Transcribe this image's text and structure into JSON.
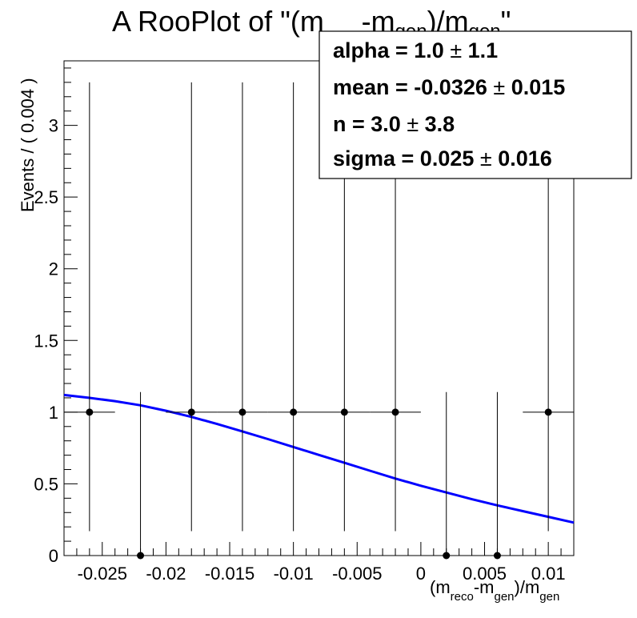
{
  "chart_data": {
    "type": "scatter",
    "title": "A RooPlot of \"(m_reco-m_gen)/m_gen\"",
    "title_parts": {
      "pre": "A RooPlot of \"(m",
      "sub1": "reco",
      "mid": "-m",
      "sub2": "gen",
      "close": ")/m",
      "sub3": "gen",
      "post": "\""
    },
    "xlabel": "(m_reco-m_gen)/m_gen",
    "xlabel_parts": {
      "pre": "(m",
      "sub1": "reco",
      "mid": "-m",
      "sub2": "gen",
      "close": ")/m",
      "sub3": "gen"
    },
    "ylabel": "Events / ( 0.004 )",
    "xlim": [
      -0.028,
      0.012
    ],
    "ylim": [
      0,
      3.45
    ],
    "x_ticks": [
      -0.025,
      -0.02,
      -0.015,
      -0.01,
      -0.005,
      0,
      0.005,
      0.01
    ],
    "x_tick_labels": [
      "-0.025",
      "-0.02",
      "-0.015",
      "-0.01",
      "-0.005",
      "0",
      "0.005",
      "0.01"
    ],
    "y_ticks": [
      0,
      0.5,
      1,
      1.5,
      2,
      2.5,
      3
    ],
    "y_tick_labels": [
      "0",
      "0.5",
      "1",
      "1.5",
      "2",
      "2.5",
      "3"
    ],
    "points": [
      {
        "x": -0.026,
        "y": 1,
        "xerr": 0.002,
        "yerr_low": 0.83,
        "yerr_high": 2.3
      },
      {
        "x": -0.022,
        "y": 0,
        "xerr": 0.002,
        "yerr_low": 0,
        "yerr_high": 1.14
      },
      {
        "x": -0.018,
        "y": 1,
        "xerr": 0.002,
        "yerr_low": 0.83,
        "yerr_high": 2.3
      },
      {
        "x": -0.014,
        "y": 1,
        "xerr": 0.002,
        "yerr_low": 0.83,
        "yerr_high": 2.3
      },
      {
        "x": -0.01,
        "y": 1,
        "xerr": 0.002,
        "yerr_low": 0.83,
        "yerr_high": 2.3
      },
      {
        "x": -0.006,
        "y": 1,
        "xerr": 0.002,
        "yerr_low": 0.83,
        "yerr_high": 2.3
      },
      {
        "x": -0.002,
        "y": 1,
        "xerr": 0.002,
        "yerr_low": 0.83,
        "yerr_high": 2.3
      },
      {
        "x": 0.002,
        "y": 0,
        "xerr": 0.002,
        "yerr_low": 0,
        "yerr_high": 1.14
      },
      {
        "x": 0.006,
        "y": 0,
        "xerr": 0.002,
        "yerr_low": 0,
        "yerr_high": 1.14
      },
      {
        "x": 0.01,
        "y": 1,
        "xerr": 0.002,
        "yerr_low": 0.83,
        "yerr_high": 2.3
      }
    ],
    "fit_curve": {
      "color": "#0000ff",
      "x": [
        -0.028,
        -0.026,
        -0.024,
        -0.022,
        -0.02,
        -0.018,
        -0.016,
        -0.014,
        -0.012,
        -0.01,
        -0.008,
        -0.006,
        -0.004,
        -0.002,
        0,
        0.002,
        0.004,
        0.006,
        0.008,
        0.01,
        0.012
      ],
      "y": [
        1.12,
        1.1,
        1.077,
        1.048,
        1.01,
        0.967,
        0.918,
        0.866,
        0.812,
        0.757,
        0.702,
        0.647,
        0.592,
        0.537,
        0.487,
        0.44,
        0.393,
        0.35,
        0.31,
        0.27,
        0.23
      ]
    },
    "stats_box": {
      "position": "top-right",
      "lines": [
        {
          "label": "alpha =  1.0 ",
          "pm": "±",
          "err": " 1.1"
        },
        {
          "label": "mean = -0.0326 ",
          "pm": "±",
          "err": " 0.015"
        },
        {
          "label": "n =  3.0 ",
          "pm": "±",
          "err": " 3.8"
        },
        {
          "label": "sigma =  0.025 ",
          "pm": "±",
          "err": " 0.016"
        }
      ]
    },
    "grid": false,
    "marker_color": "#000000"
  }
}
